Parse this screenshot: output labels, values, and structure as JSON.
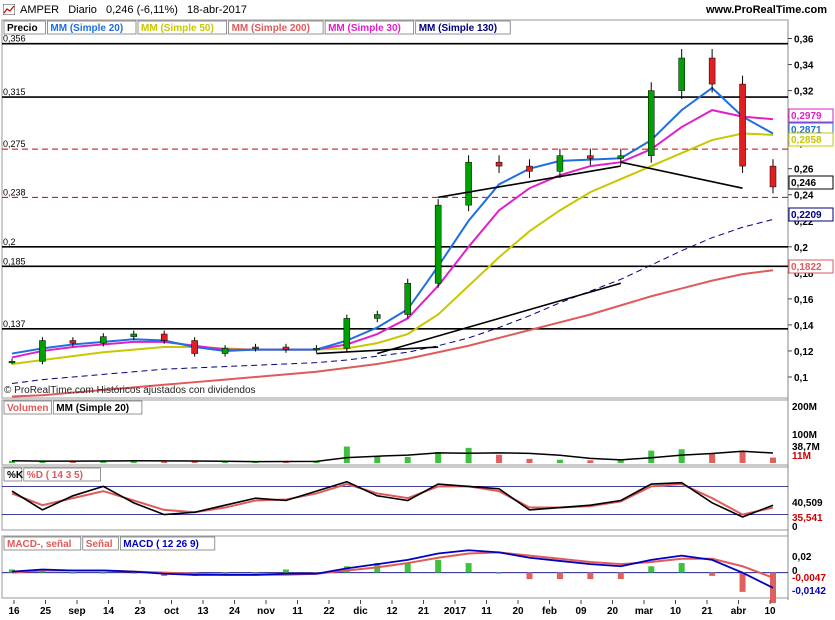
{
  "header": {
    "symbol": "AMPER",
    "period": "Diario",
    "last": "0,246",
    "change": "(-6,11%)",
    "date": "18-abr-2017",
    "site": "www.ProRealTime.com"
  },
  "price_panel": {
    "legend": [
      {
        "label": "Precio",
        "color": "#000000"
      },
      {
        "label": "MM (Simple 20)",
        "color": "#1e6fe0"
      },
      {
        "label": "MM (Simple 50)",
        "color": "#c8c800"
      },
      {
        "label": "MM (Simple 200)",
        "color": "#e05a5a"
      },
      {
        "label": "MM (Simple 30)",
        "color": "#e020c8"
      },
      {
        "label": "MM (Simple 130)",
        "color": "#000080"
      }
    ],
    "watermark": "© ProRealTime.com  Históricos ajustados con dividendos",
    "y_ticks": [
      "0,36",
      "0,34",
      "0,32",
      "0,3",
      "0,28",
      "0,26",
      "0,24",
      "0,22",
      "0,2",
      "0,18",
      "0,16",
      "0,14",
      "0,12",
      "0,1"
    ],
    "level_labels": [
      "0,356",
      "0,315",
      "0,275",
      "0,238",
      "0,2",
      "0,185",
      "0,137"
    ],
    "value_badges": [
      {
        "text": "0,2979",
        "color": "#e020c8"
      },
      {
        "text": "0,2871",
        "color": "#1e6fe0"
      },
      {
        "text": "0,2858",
        "color": "#c8c800"
      },
      {
        "text": "0,246",
        "color": "#000000"
      },
      {
        "text": "0,2209",
        "color": "#000080"
      },
      {
        "text": "0,1822",
        "color": "#e05a5a"
      }
    ]
  },
  "volume_panel": {
    "legend": [
      {
        "label": "Volumen",
        "color": "#e05a5a"
      },
      {
        "label": "MM (Simple 20)",
        "color": "#000000"
      }
    ],
    "y_ticks": [
      "200M",
      "100M",
      "38,7M",
      "11M"
    ]
  },
  "stoch_panel": {
    "legend": [
      {
        "label": "%K",
        "color": "#000000"
      },
      {
        "label": "%D ( 14 3 5)",
        "color": "#e05a5a"
      }
    ],
    "y_ticks": [
      "40,509",
      "35,541",
      "0"
    ]
  },
  "macd_panel": {
    "legend": [
      {
        "label": "MACD-, señal",
        "color": "#e05a5a"
      },
      {
        "label": "Señal",
        "color": "#e05a5a"
      },
      {
        "label": "MACD ( 12 26 9)",
        "color": "#0000c0"
      }
    ],
    "y_ticks": [
      "0,02",
      "0",
      "-0,0047",
      "-0,0142"
    ]
  },
  "x_axis": {
    "labels": [
      "16",
      "25",
      "sep",
      "14",
      "23",
      "oct",
      "13",
      "24",
      "nov",
      "11",
      "22",
      "dic",
      "12",
      "21",
      "2017",
      "11",
      "20",
      "feb",
      "09",
      "20",
      "mar",
      "10",
      "21",
      "abr",
      "10"
    ]
  },
  "chart_data": {
    "type": "candlestick",
    "title": "AMPER Diario",
    "ylim": [
      0.09,
      0.365
    ],
    "horizontal_levels": [
      0.356,
      0.315,
      0.275,
      0.238,
      0.2,
      0.185,
      0.137
    ],
    "dashed_levels": [
      0.275,
      0.238
    ],
    "close_series": [
      {
        "x": "16 ago",
        "y": 0.112
      },
      {
        "x": "25 ago",
        "y": 0.128
      },
      {
        "x": "sep",
        "y": 0.126
      },
      {
        "x": "14 sep",
        "y": 0.131
      },
      {
        "x": "23 sep",
        "y": 0.133
      },
      {
        "x": "oct",
        "y": 0.128
      },
      {
        "x": "13 oct",
        "y": 0.118
      },
      {
        "x": "24 oct",
        "y": 0.122
      },
      {
        "x": "nov",
        "y": 0.123
      },
      {
        "x": "11 nov",
        "y": 0.121
      },
      {
        "x": "22 nov",
        "y": 0.122
      },
      {
        "x": "dic",
        "y": 0.145
      },
      {
        "x": "12 dic",
        "y": 0.148
      },
      {
        "x": "21 dic",
        "y": 0.172
      },
      {
        "x": "2017",
        "y": 0.232
      },
      {
        "x": "11 ene",
        "y": 0.265
      },
      {
        "x": "20 ene",
        "y": 0.262
      },
      {
        "x": "feb",
        "y": 0.258
      },
      {
        "x": "09 feb",
        "y": 0.27
      },
      {
        "x": "20 feb",
        "y": 0.268
      },
      {
        "x": "mar",
        "y": 0.27
      },
      {
        "x": "10 mar",
        "y": 0.32
      },
      {
        "x": "21 mar",
        "y": 0.345
      },
      {
        "x": "abr",
        "y": 0.325
      },
      {
        "x": "10 abr",
        "y": 0.262
      },
      {
        "x": "18 abr",
        "y": 0.246
      }
    ],
    "sma20": [
      0.118,
      0.122,
      0.125,
      0.127,
      0.129,
      0.128,
      0.123,
      0.12,
      0.121,
      0.121,
      0.121,
      0.128,
      0.138,
      0.152,
      0.185,
      0.22,
      0.248,
      0.26,
      0.266,
      0.267,
      0.268,
      0.282,
      0.305,
      0.322,
      0.3,
      0.287
    ],
    "sma30": [
      0.115,
      0.12,
      0.123,
      0.125,
      0.127,
      0.127,
      0.124,
      0.121,
      0.121,
      0.121,
      0.121,
      0.125,
      0.133,
      0.145,
      0.17,
      0.2,
      0.228,
      0.245,
      0.255,
      0.262,
      0.265,
      0.275,
      0.292,
      0.305,
      0.3,
      0.298
    ],
    "sma50": [
      0.11,
      0.113,
      0.116,
      0.119,
      0.121,
      0.123,
      0.123,
      0.122,
      0.121,
      0.121,
      0.121,
      0.122,
      0.126,
      0.133,
      0.148,
      0.17,
      0.192,
      0.212,
      0.228,
      0.242,
      0.252,
      0.262,
      0.272,
      0.282,
      0.287,
      0.286
    ],
    "sma130": [
      0.095,
      0.098,
      0.1,
      0.102,
      0.104,
      0.106,
      0.107,
      0.108,
      0.109,
      0.11,
      0.111,
      0.113,
      0.116,
      0.119,
      0.124,
      0.13,
      0.138,
      0.147,
      0.157,
      0.166,
      0.175,
      0.186,
      0.197,
      0.207,
      0.215,
      0.221
    ],
    "sma200": [
      0.085,
      0.086,
      0.088,
      0.09,
      0.092,
      0.094,
      0.096,
      0.098,
      0.1,
      0.102,
      0.104,
      0.107,
      0.11,
      0.114,
      0.119,
      0.124,
      0.13,
      0.136,
      0.142,
      0.148,
      0.155,
      0.162,
      0.168,
      0.174,
      0.179,
      0.182
    ],
    "volume": [
      8,
      6,
      7,
      9,
      10,
      5,
      6,
      4,
      5,
      6,
      8,
      60,
      25,
      22,
      40,
      55,
      30,
      15,
      12,
      10,
      9,
      45,
      50,
      35,
      40,
      20
    ],
    "stoch_k": [
      70,
      30,
      60,
      80,
      45,
      20,
      25,
      40,
      55,
      50,
      70,
      90,
      60,
      50,
      85,
      80,
      75,
      30,
      35,
      40,
      50,
      85,
      88,
      45,
      15,
      40
    ],
    "stoch_d": [
      65,
      40,
      55,
      70,
      50,
      30,
      25,
      35,
      50,
      52,
      65,
      85,
      65,
      55,
      80,
      80,
      70,
      35,
      35,
      38,
      48,
      80,
      85,
      55,
      20,
      35
    ],
    "macd": [
      0.001,
      0.003,
      0.002,
      0.002,
      0.001,
      -0.001,
      -0.002,
      -0.002,
      -0.002,
      -0.001,
      -0.001,
      0.004,
      0.008,
      0.012,
      0.018,
      0.021,
      0.019,
      0.014,
      0.011,
      0.008,
      0.006,
      0.012,
      0.016,
      0.012,
      0.0,
      -0.0142
    ],
    "signal": [
      0.0,
      0.002,
      0.002,
      0.002,
      0.001,
      0.0,
      -0.001,
      -0.002,
      -0.002,
      -0.002,
      -0.001,
      0.002,
      0.005,
      0.009,
      0.014,
      0.018,
      0.019,
      0.016,
      0.013,
      0.01,
      0.008,
      0.01,
      0.013,
      0.013,
      0.006,
      -0.0047
    ]
  }
}
